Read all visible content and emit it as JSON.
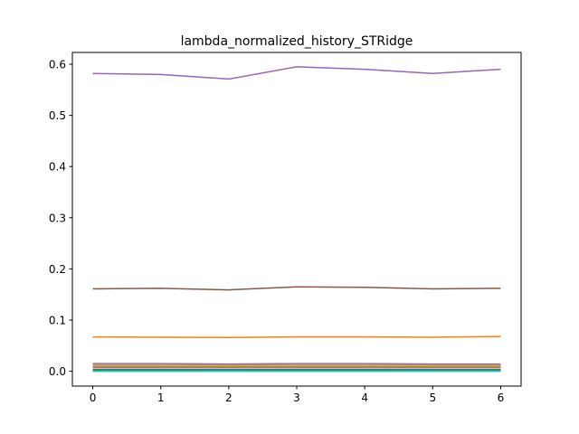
{
  "chart_data": {
    "type": "line",
    "title": "lambda_normalized_history_STRidge",
    "xlabel": "",
    "ylabel": "",
    "x": [
      0,
      1,
      2,
      3,
      4,
      5,
      6
    ],
    "xlim": [
      -0.3,
      6.3
    ],
    "ylim": [
      -0.029,
      0.623
    ],
    "xticks": [
      "0",
      "1",
      "2",
      "3",
      "4",
      "5",
      "6"
    ],
    "yticks": [
      {
        "value": 0.0,
        "label": "0.0"
      },
      {
        "value": 0.1,
        "label": "0.1"
      },
      {
        "value": 0.2,
        "label": "0.2"
      },
      {
        "value": 0.3,
        "label": "0.3"
      },
      {
        "value": 0.4,
        "label": "0.4"
      },
      {
        "value": 0.5,
        "label": "0.5"
      },
      {
        "value": 0.6,
        "label": "0.6"
      }
    ],
    "grid": false,
    "legend": "none",
    "series": [
      {
        "color": "#1f77b4",
        "values": [
          0.004,
          0.004,
          0.004,
          0.004,
          0.004,
          0.004,
          0.004
        ]
      },
      {
        "color": "#ff7f0e",
        "values": [
          0.067,
          0.0665,
          0.066,
          0.067,
          0.067,
          0.0665,
          0.068
        ]
      },
      {
        "color": "#2ca02c",
        "values": [
          0.002,
          0.002,
          0.002,
          0.002,
          0.002,
          0.002,
          0.002
        ]
      },
      {
        "color": "#d62728",
        "values": [
          0.008,
          0.008,
          0.008,
          0.008,
          0.008,
          0.008,
          0.008
        ]
      },
      {
        "color": "#9467bd",
        "values": [
          0.582,
          0.58,
          0.571,
          0.595,
          0.59,
          0.582,
          0.59
        ]
      },
      {
        "color": "#8c564b",
        "values": [
          0.161,
          0.162,
          0.159,
          0.165,
          0.164,
          0.161,
          0.162
        ]
      },
      {
        "color": "#e377c2",
        "values": [
          0.012,
          0.012,
          0.012,
          0.012,
          0.012,
          0.012,
          0.012
        ]
      },
      {
        "color": "#7f7f7f",
        "values": [
          0.015,
          0.015,
          0.014,
          0.015,
          0.015,
          0.014,
          0.014
        ]
      },
      {
        "color": "#bcbd22",
        "values": [
          0.01,
          0.01,
          0.01,
          0.01,
          0.01,
          0.01,
          0.01
        ]
      },
      {
        "color": "#17becf",
        "values": [
          0.0,
          0.0,
          0.0,
          0.0,
          0.0,
          0.0,
          0.0
        ]
      }
    ]
  }
}
